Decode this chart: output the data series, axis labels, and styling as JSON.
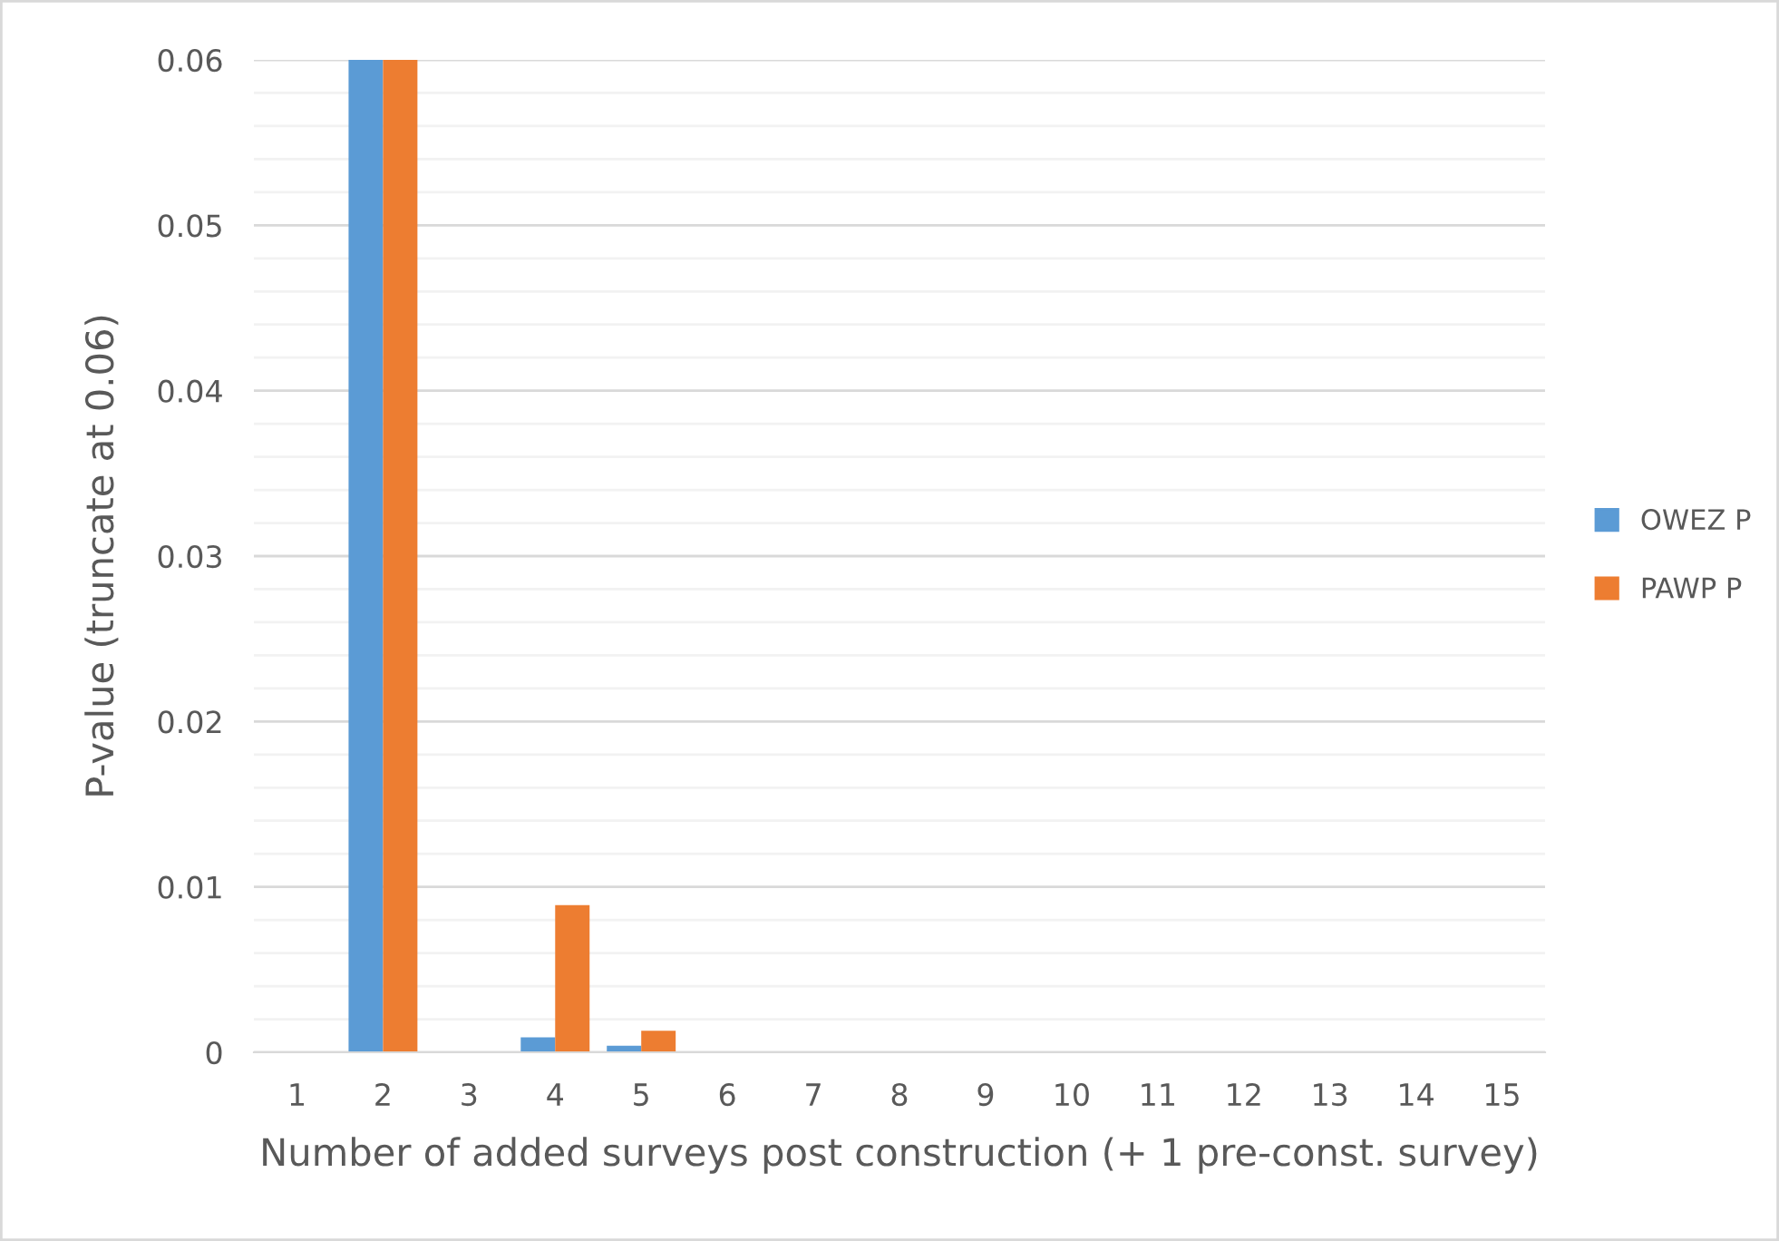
{
  "chart_data": {
    "type": "bar",
    "xlabel": "Number of added surveys post construction (+ 1 pre-const. survey)",
    "ylabel": "P-value (truncate at 0.06)",
    "categories": [
      "1",
      "2",
      "3",
      "4",
      "5",
      "6",
      "7",
      "8",
      "9",
      "10",
      "11",
      "12",
      "13",
      "14",
      "15"
    ],
    "series": [
      {
        "name": "OWEZ P",
        "color": "#5b9bd5",
        "values": [
          null,
          0.06,
          null,
          0.0009,
          0.0004,
          null,
          null,
          null,
          null,
          null,
          null,
          null,
          null,
          null,
          null
        ]
      },
      {
        "name": "PAWP P",
        "color": "#ed7d31",
        "values": [
          null,
          0.06,
          null,
          0.0089,
          0.0013,
          null,
          null,
          null,
          null,
          null,
          null,
          null,
          null,
          null,
          null
        ]
      }
    ],
    "ylim": [
      0,
      0.06
    ],
    "yticks": [
      0,
      {
        "value": 0.002,
        "label": null
      },
      {
        "value": 0.004,
        "label": null
      },
      {
        "value": 0.006,
        "label": null
      },
      {
        "value": 0.008,
        "label": null
      },
      0.01,
      {
        "value": 0.012,
        "label": null
      },
      {
        "value": 0.014,
        "label": null
      },
      {
        "value": 0.016,
        "label": null
      },
      {
        "value": 0.018,
        "label": null
      },
      0.02,
      {
        "value": 0.022,
        "label": null
      },
      {
        "value": 0.024,
        "label": null
      },
      {
        "value": 0.026,
        "label": null
      },
      {
        "value": 0.028,
        "label": null
      },
      0.03,
      {
        "value": 0.032,
        "label": null
      },
      {
        "value": 0.034,
        "label": null
      },
      {
        "value": 0.036,
        "label": null
      },
      {
        "value": 0.038,
        "label": null
      },
      0.04,
      {
        "value": 0.042,
        "label": null
      },
      {
        "value": 0.044,
        "label": null
      },
      {
        "value": 0.046,
        "label": null
      },
      {
        "value": 0.048,
        "label": null
      },
      0.05,
      {
        "value": 0.052,
        "label": null
      },
      {
        "value": 0.054,
        "label": null
      },
      {
        "value": 0.056,
        "label": null
      },
      {
        "value": 0.058,
        "label": null
      },
      0.06
    ],
    "grid": "y",
    "legend": "right"
  }
}
